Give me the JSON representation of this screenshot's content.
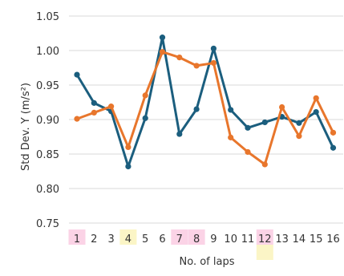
{
  "chart_data": {
    "type": "line",
    "title": "",
    "xlabel": "No. of laps",
    "ylabel": "Std Dev. Y (m/s²)",
    "ylim": [
      0.75,
      1.05
    ],
    "yticks": [
      "0.75",
      "0.80",
      "0.85",
      "0.90",
      "0.95",
      "1.00",
      "1.05"
    ],
    "categories": [
      "1",
      "2",
      "3",
      "4",
      "5",
      "6",
      "7",
      "8",
      "9",
      "10",
      "11",
      "12",
      "13",
      "14",
      "15",
      "16"
    ],
    "grid": true,
    "legend": "none",
    "series": [
      {
        "color": "#1b5e7e",
        "values": [
          0.965,
          0.924,
          0.912,
          0.832,
          0.902,
          1.019,
          0.879,
          0.915,
          1.003,
          0.914,
          0.888,
          0.896,
          0.904,
          0.895,
          0.911,
          0.859
        ]
      },
      {
        "color": "#e8762c",
        "values": [
          0.901,
          0.91,
          0.919,
          0.86,
          0.935,
          0.998,
          0.99,
          0.978,
          0.982,
          0.874,
          0.853,
          0.835,
          0.918,
          0.876,
          0.931,
          0.881
        ]
      }
    ],
    "highlights": [
      {
        "category": "1",
        "color": "#fbd3e6",
        "rows": 1
      },
      {
        "category": "4",
        "color": "#fbf5c6",
        "rows": 1
      },
      {
        "category": "7",
        "color": "#fbd3e6",
        "rows": 1
      },
      {
        "category": "8",
        "color": "#fbd3e6",
        "rows": 1
      },
      {
        "category": "12",
        "color": "#fbd3e6",
        "rows": 1
      },
      {
        "category": "12",
        "color": "#fbf5c6",
        "rows": 2
      }
    ]
  }
}
